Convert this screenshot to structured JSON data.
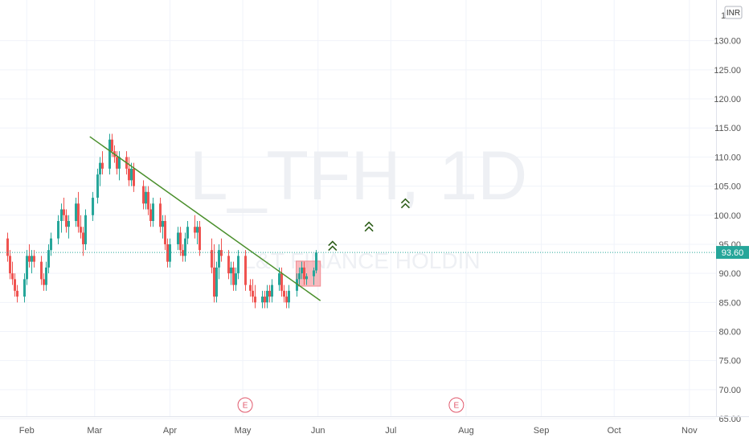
{
  "watermark": {
    "symbol": "L_TFH, 1D",
    "name": "L&T FINANCE HOLDIN"
  },
  "currency": "INR",
  "top_tick_partial": "1",
  "last_price_label": "93.60",
  "colors": {
    "up": "#26a69a",
    "down": "#ef5350",
    "trendline": "#4a8f2c",
    "arrows": "#2e5e1a",
    "price_line": "#26a69a",
    "event": "#e0566a",
    "grid": "#f0f3fa",
    "box": "#f5a3a8"
  },
  "events": [
    {
      "label": "E",
      "date": "2022-05-02"
    },
    {
      "label": "E",
      "date": "2022-07-28"
    }
  ],
  "chart_data": {
    "type": "candlestick",
    "y_ticks": [
      "130.00",
      "125.00",
      "120.00",
      "115.00",
      "110.00",
      "105.00",
      "100.00",
      "95.00",
      "90.00",
      "85.00",
      "80.00",
      "75.00",
      "70.00",
      "65.00"
    ],
    "x_ticks": [
      "Feb",
      "Mar",
      "Apr",
      "May",
      "Jun",
      "Jul",
      "Aug",
      "Sep",
      "Oct",
      "Nov"
    ],
    "ylim": [
      61,
      137
    ],
    "xlim": [
      "2022-01-21",
      "2022-11-09"
    ],
    "grid": true,
    "last_price": 93.6,
    "series": [
      {
        "points": [
          [
            "2022-01-24",
            96,
            97,
            92,
            93
          ],
          [
            "2022-01-25",
            93,
            94,
            89,
            90
          ],
          [
            "2022-01-26",
            90,
            92,
            88,
            89
          ],
          [
            "2022-01-27",
            89,
            90,
            86,
            87
          ],
          [
            "2022-01-28",
            87,
            88,
            85,
            86
          ],
          [
            "2022-01-31",
            86,
            90,
            85,
            89
          ],
          [
            "2022-02-01",
            89,
            94,
            88,
            93
          ],
          [
            "2022-02-02",
            93,
            95,
            91,
            92
          ],
          [
            "2022-02-03",
            92,
            94,
            90,
            93
          ],
          [
            "2022-02-04",
            93,
            94,
            91,
            92
          ],
          [
            "2022-02-07",
            92,
            93,
            88,
            89
          ],
          [
            "2022-02-08",
            89,
            90,
            87,
            88
          ],
          [
            "2022-02-09",
            88,
            92,
            87,
            91
          ],
          [
            "2022-02-10",
            91,
            95,
            90,
            94
          ],
          [
            "2022-02-11",
            94,
            97,
            93,
            96
          ],
          [
            "2022-02-14",
            96,
            100,
            95,
            99
          ],
          [
            "2022-02-15",
            99,
            102,
            97,
            101
          ],
          [
            "2022-02-16",
            101,
            103,
            99,
            100
          ],
          [
            "2022-02-17",
            100,
            101,
            97,
            98
          ],
          [
            "2022-02-18",
            98,
            100,
            96,
            99
          ],
          [
            "2022-02-21",
            99,
            103,
            98,
            102
          ],
          [
            "2022-02-22",
            102,
            104,
            97,
            98
          ],
          [
            "2022-02-23",
            98,
            100,
            96,
            97
          ],
          [
            "2022-02-24",
            97,
            98,
            93,
            95
          ],
          [
            "2022-02-25",
            95,
            101,
            94,
            100
          ],
          [
            "2022-02-28",
            100,
            104,
            99,
            103
          ],
          [
            "2022-03-02",
            103,
            108,
            102,
            107
          ],
          [
            "2022-03-03",
            107,
            110,
            105,
            109
          ],
          [
            "2022-03-04",
            109,
            111,
            107,
            108
          ],
          [
            "2022-03-07",
            108,
            114,
            107,
            113
          ],
          [
            "2022-03-08",
            113,
            114,
            110,
            111
          ],
          [
            "2022-03-09",
            111,
            112,
            109,
            110
          ],
          [
            "2022-03-10",
            110,
            111,
            107,
            108
          ],
          [
            "2022-03-11",
            108,
            111,
            106,
            110
          ],
          [
            "2022-03-14",
            110,
            111,
            107,
            108
          ],
          [
            "2022-03-15",
            108,
            110,
            105,
            106
          ],
          [
            "2022-03-16",
            106,
            109,
            105,
            108
          ],
          [
            "2022-03-17",
            108,
            109,
            104,
            105
          ],
          [
            "2022-03-21",
            105,
            106,
            101,
            102
          ],
          [
            "2022-03-22",
            102,
            105,
            101,
            104
          ],
          [
            "2022-03-23",
            104,
            105,
            100,
            101
          ],
          [
            "2022-03-24",
            101,
            102,
            98,
            99
          ],
          [
            "2022-03-25",
            99,
            103,
            98,
            102
          ],
          [
            "2022-03-28",
            102,
            103,
            97,
            98
          ],
          [
            "2022-03-29",
            98,
            100,
            96,
            99
          ],
          [
            "2022-03-30",
            99,
            100,
            94,
            95
          ],
          [
            "2022-03-31",
            95,
            96,
            91,
            92
          ],
          [
            "2022-04-01",
            92,
            96,
            91,
            95
          ],
          [
            "2022-04-04",
            95,
            98,
            94,
            97
          ],
          [
            "2022-04-05",
            97,
            98,
            93,
            94
          ],
          [
            "2022-04-06",
            94,
            95,
            92,
            93
          ],
          [
            "2022-04-07",
            93,
            97,
            92,
            96
          ],
          [
            "2022-04-08",
            96,
            99,
            95,
            98
          ],
          [
            "2022-04-11",
            98,
            100,
            96,
            97
          ],
          [
            "2022-04-12",
            97,
            99,
            95,
            98
          ],
          [
            "2022-04-13",
            98,
            99,
            93,
            94
          ],
          [
            "2022-04-18",
            94,
            96,
            90,
            91
          ],
          [
            "2022-04-19",
            91,
            95,
            85,
            86
          ],
          [
            "2022-04-20",
            86,
            92,
            85,
            91
          ],
          [
            "2022-04-21",
            91,
            95,
            89,
            94
          ],
          [
            "2022-04-22",
            94,
            96,
            92,
            93
          ],
          [
            "2022-04-25",
            93,
            94,
            89,
            90
          ],
          [
            "2022-04-26",
            90,
            92,
            88,
            91
          ],
          [
            "2022-04-27",
            91,
            92,
            87,
            88
          ],
          [
            "2022-04-28",
            88,
            91,
            87,
            90
          ],
          [
            "2022-04-29",
            90,
            94,
            89,
            93
          ],
          [
            "2022-05-02",
            93,
            94,
            87,
            88
          ],
          [
            "2022-05-04",
            88,
            89,
            86,
            87
          ],
          [
            "2022-05-05",
            87,
            89,
            85,
            86
          ],
          [
            "2022-05-06",
            86,
            88,
            84,
            85
          ],
          [
            "2022-05-09",
            85,
            87,
            84,
            86
          ],
          [
            "2022-05-10",
            86,
            87,
            84,
            85
          ],
          [
            "2022-05-11",
            85,
            88,
            84,
            87
          ],
          [
            "2022-05-12",
            87,
            88,
            85,
            86
          ],
          [
            "2022-05-13",
            86,
            89,
            85,
            88
          ],
          [
            "2022-05-16",
            88,
            91,
            87,
            90
          ],
          [
            "2022-05-17",
            90,
            91,
            86,
            87
          ],
          [
            "2022-05-18",
            87,
            88,
            85,
            86
          ],
          [
            "2022-05-19",
            86,
            87,
            84,
            85
          ],
          [
            "2022-05-20",
            85,
            88,
            84,
            87
          ],
          [
            "2022-05-23",
            87,
            90,
            86,
            89
          ],
          [
            "2022-05-24",
            89,
            91,
            88,
            90
          ],
          [
            "2022-05-25",
            90,
            92,
            89,
            91
          ],
          [
            "2022-05-26",
            91,
            92,
            88,
            89
          ],
          [
            "2022-05-27",
            89,
            90,
            88,
            89.5
          ],
          [
            "2022-05-30",
            89.5,
            91,
            88,
            90.5
          ],
          [
            "2022-05-31",
            90.5,
            94,
            90,
            93.6
          ]
        ]
      }
    ],
    "trendline": {
      "from": [
        "2022-02-27",
        113.5
      ],
      "to": [
        "2022-06-02",
        85.3
      ]
    },
    "highlight_box": {
      "from": [
        "2022-05-23",
        92.1
      ],
      "to": [
        "2022-06-02",
        87.8
      ]
    },
    "arrow_markers": [
      [
        "2022-06-07",
        94.5
      ],
      [
        "2022-06-22",
        97.8
      ],
      [
        "2022-07-07",
        101.8
      ]
    ]
  }
}
